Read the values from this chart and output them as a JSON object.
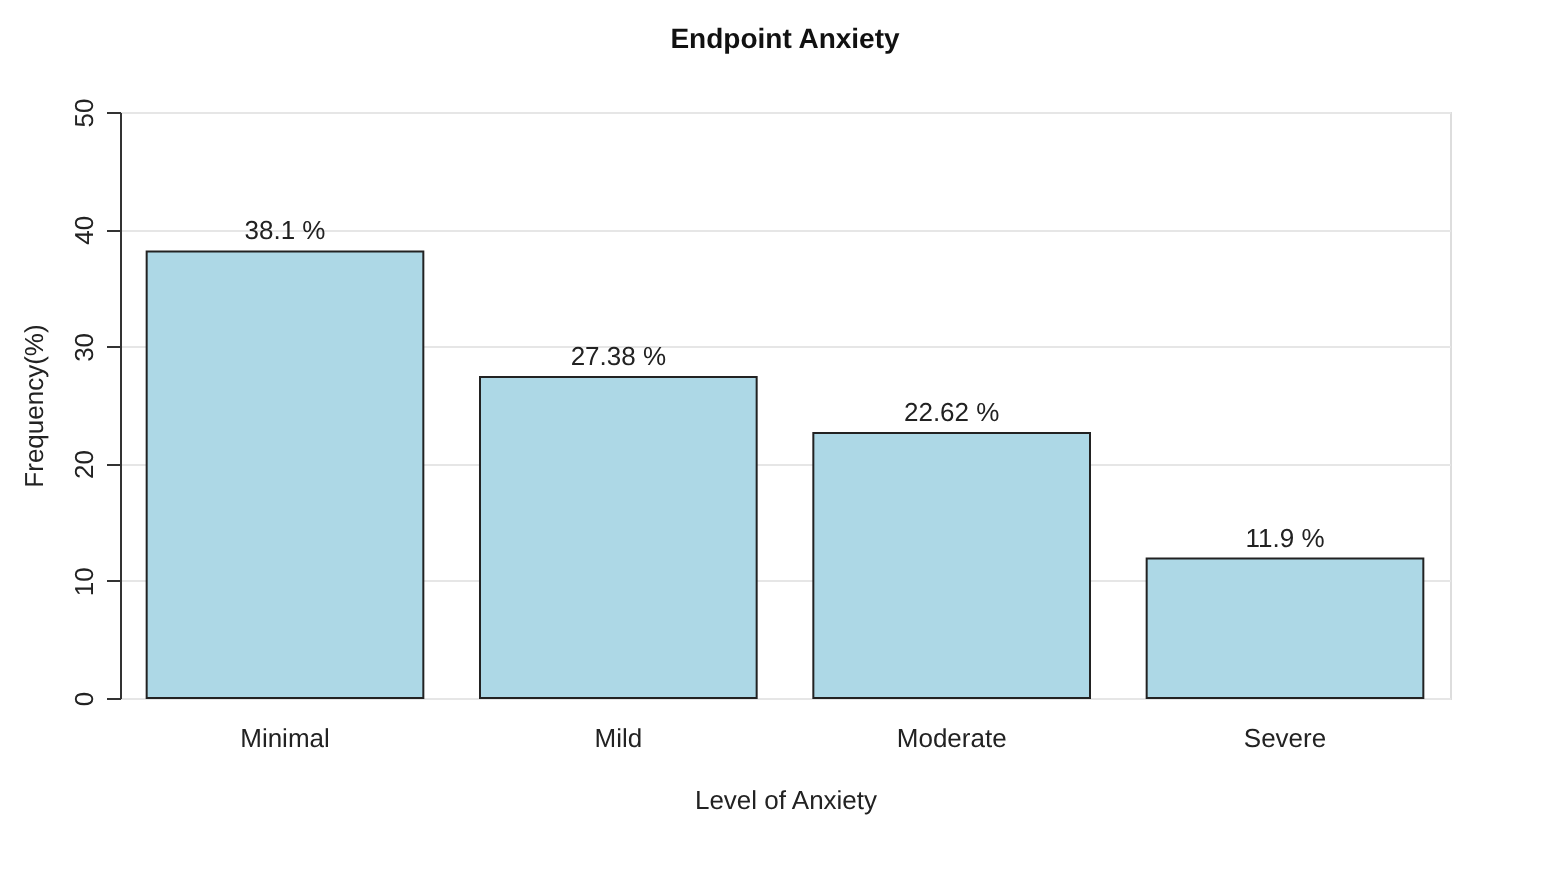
{
  "chart_data": {
    "type": "bar",
    "title": "Endpoint Anxiety",
    "xlabel": "Level of Anxiety",
    "ylabel": "Frequency(%)",
    "categories": [
      "Minimal",
      "Mild",
      "Moderate",
      "Severe"
    ],
    "values": [
      38.1,
      27.38,
      22.62,
      11.9
    ],
    "value_labels": [
      "38.1 %",
      "27.38 %",
      "22.62 %",
      "11.9 %"
    ],
    "color": "#add8e6",
    "ylim": [
      0,
      50
    ],
    "yticks": [
      0,
      10,
      20,
      30,
      40,
      50
    ],
    "grid": "y"
  }
}
